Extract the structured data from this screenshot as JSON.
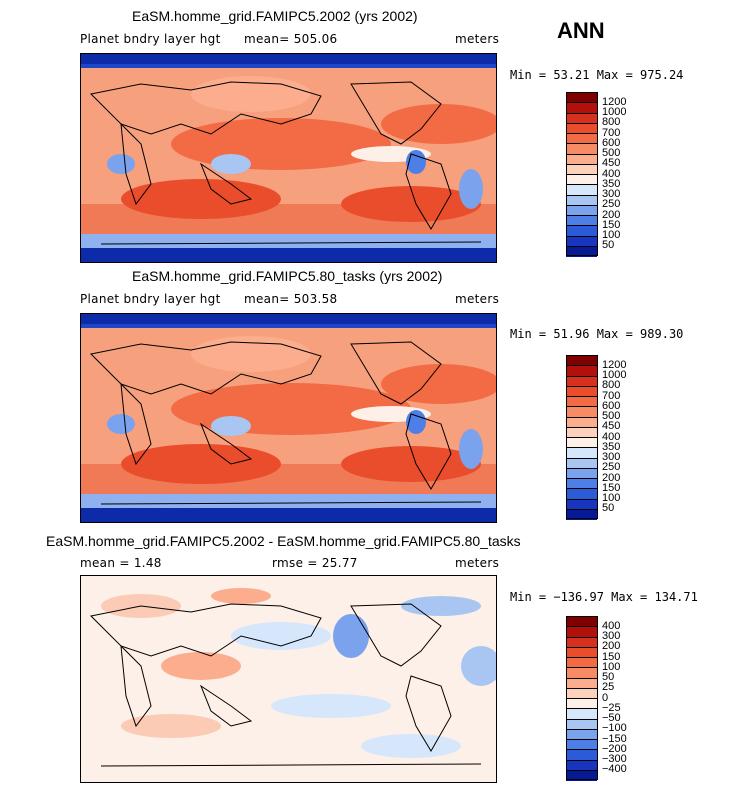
{
  "season": "ANN",
  "panels": [
    {
      "title": "EaSM.homme_grid.FAMIPC5.2002 (yrs 2002)",
      "variable": "Planet bndry layer hgt",
      "mean": "mean= 505.06",
      "units": "meters",
      "minmax": "Min =  53.21 Max = 975.24",
      "legend_labels": [
        "1200",
        "1000",
        "800",
        "700",
        "600",
        "500",
        "450",
        "400",
        "350",
        "300",
        "250",
        "200",
        "150",
        "100",
        "50"
      ],
      "legend_colors": [
        "#7f0000",
        "#b3100c",
        "#d7301f",
        "#ea4d2c",
        "#f26b45",
        "#f78b65",
        "#fbad8d",
        "#fdd2bd",
        "#fdf0e8",
        "#d6e6fb",
        "#a9c6f3",
        "#7ba2ec",
        "#4e7fe6",
        "#2c5bd8",
        "#1835c0",
        "#061a95"
      ]
    },
    {
      "title": "EaSM.homme_grid.FAMIPC5.80_tasks (yrs 2002)",
      "variable": "Planet bndry layer hgt",
      "mean": "mean= 503.58",
      "units": "meters",
      "minmax": "Min =  51.96 Max = 989.30",
      "legend_labels": [
        "1200",
        "1000",
        "800",
        "700",
        "600",
        "500",
        "450",
        "400",
        "350",
        "300",
        "250",
        "200",
        "150",
        "100",
        "50"
      ],
      "legend_colors": [
        "#7f0000",
        "#b3100c",
        "#d7301f",
        "#ea4d2c",
        "#f26b45",
        "#f78b65",
        "#fbad8d",
        "#fdd2bd",
        "#fdf0e8",
        "#d6e6fb",
        "#a9c6f3",
        "#7ba2ec",
        "#4e7fe6",
        "#2c5bd8",
        "#1835c0",
        "#061a95"
      ]
    },
    {
      "title": "EaSM.homme_grid.FAMIPC5.2002 - EaSM.homme_grid.FAMIPC5.80_tasks",
      "mean": "mean =    1.48",
      "rmse": "rmse =   25.77",
      "units": "meters",
      "minmax": "Min = −136.97 Max = 134.71",
      "legend_labels": [
        "400",
        "300",
        "200",
        "150",
        "100",
        "50",
        "25",
        "0",
        "−25",
        "−50",
        "−100",
        "−150",
        "−200",
        "−300",
        "−400"
      ],
      "legend_colors": [
        "#7f0000",
        "#b3100c",
        "#d7301f",
        "#ea4d2c",
        "#f26b45",
        "#f78b65",
        "#fbad8d",
        "#fdd2bd",
        "#fdf0e8",
        "#d6e6fb",
        "#a9c6f3",
        "#7ba2ec",
        "#4e7fe6",
        "#2c5bd8",
        "#1835c0",
        "#061a95"
      ]
    }
  ]
}
